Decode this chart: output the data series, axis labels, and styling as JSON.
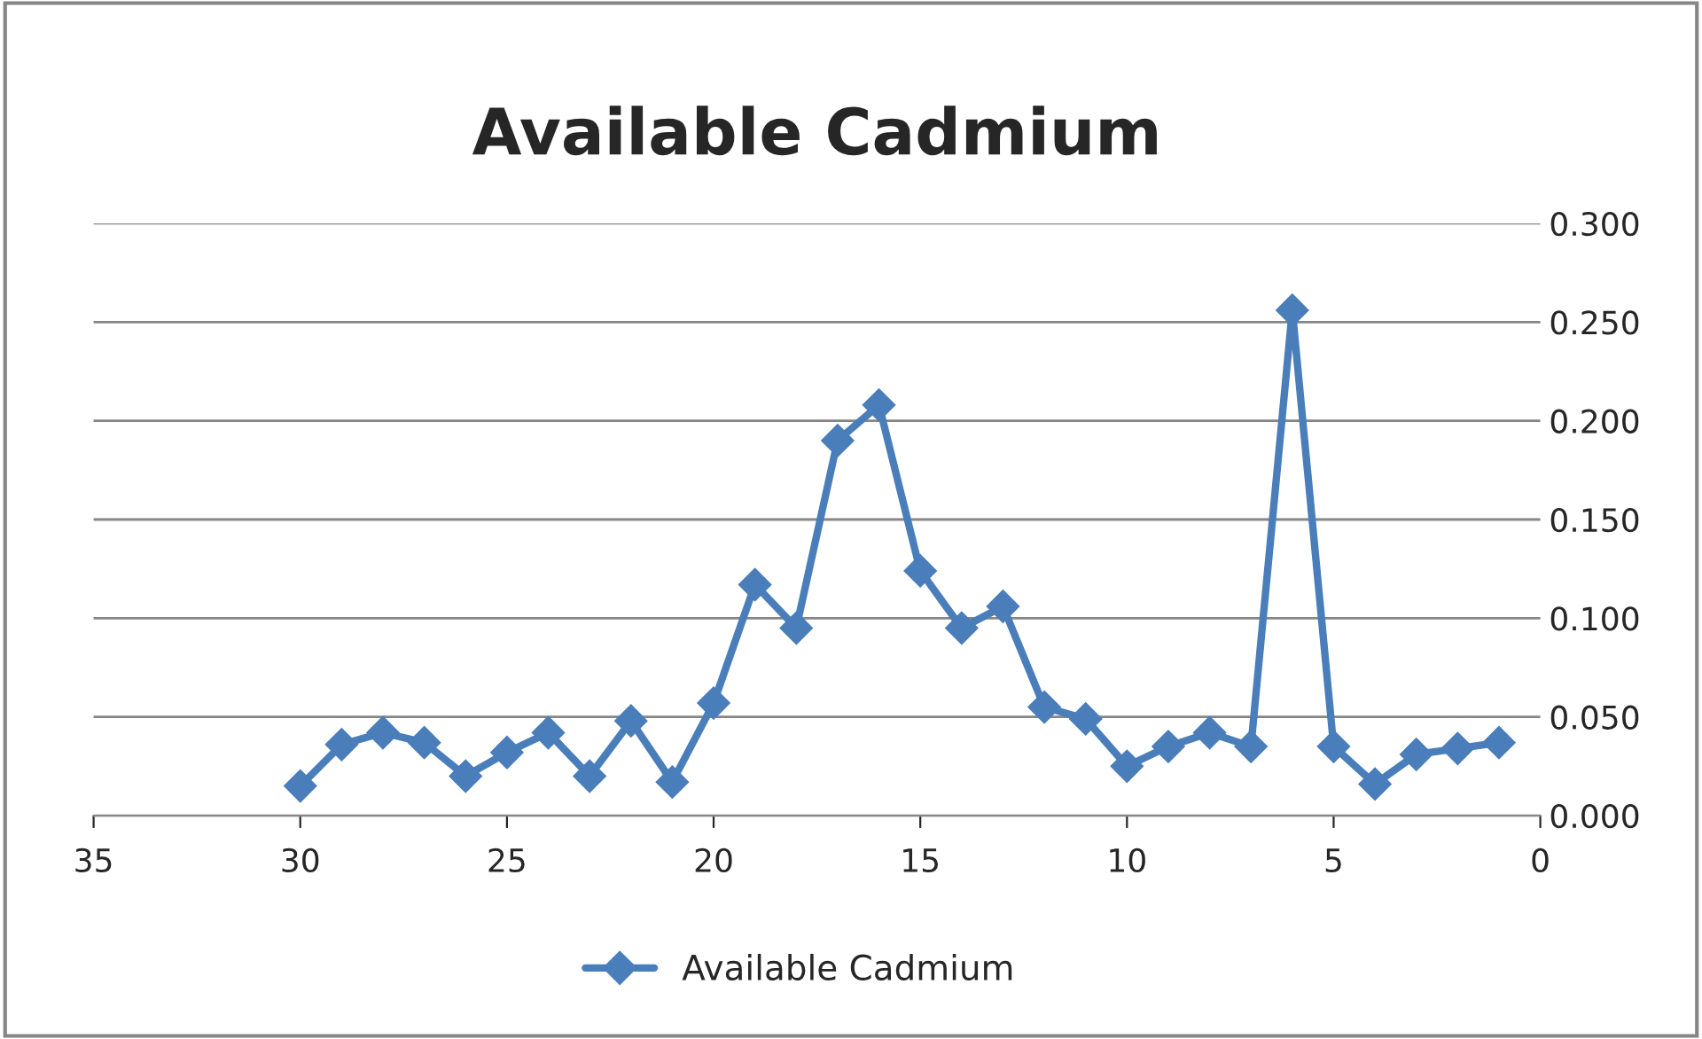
{
  "chart_data": {
    "type": "line",
    "title": "Available Cadmium",
    "x": [
      30,
      29,
      28,
      27,
      26,
      25,
      24,
      23,
      22,
      21,
      20,
      19,
      18,
      17,
      16,
      15,
      14,
      13,
      12,
      11,
      10,
      9,
      8,
      7,
      6,
      5,
      4,
      3,
      2,
      1
    ],
    "series": [
      {
        "name": "Available Cadmium",
        "color": "#4a7ebb",
        "values": [
          0.015,
          0.036,
          0.042,
          0.037,
          0.02,
          0.032,
          0.042,
          0.02,
          0.048,
          0.017,
          0.057,
          0.117,
          0.095,
          0.19,
          0.208,
          0.124,
          0.095,
          0.106,
          0.055,
          0.049,
          0.025,
          0.035,
          0.042,
          0.035,
          0.256,
          0.035,
          0.016,
          0.031,
          0.034,
          0.037
        ]
      }
    ],
    "xlim": [
      35,
      0
    ],
    "xticks": [
      35,
      30,
      25,
      20,
      15,
      10,
      5,
      0
    ],
    "ylim": [
      0,
      0.3
    ],
    "yticks": [
      {
        "value": 0,
        "label": "0.000"
      },
      {
        "value": 0.05,
        "label": "0.050"
      },
      {
        "value": 0.1,
        "label": "0.100"
      },
      {
        "value": 0.15,
        "label": "0.150"
      },
      {
        "value": 0.2,
        "label": "0.200"
      },
      {
        "value": 0.25,
        "label": "0.250"
      },
      {
        "value": 0.3,
        "label": "0.300"
      }
    ],
    "grid": "y",
    "legend": "bottom",
    "marker": "diamond",
    "line_style": "solid"
  }
}
